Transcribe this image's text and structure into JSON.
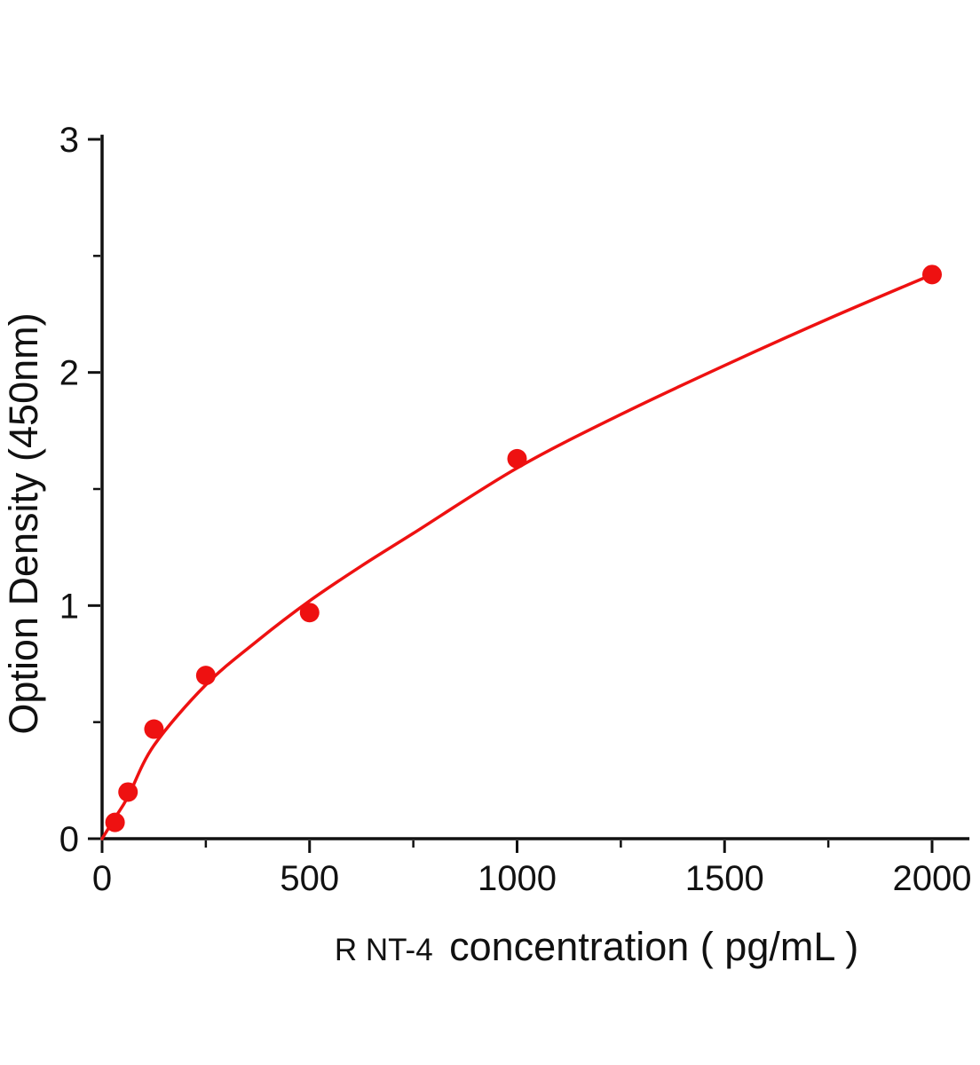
{
  "figure": {
    "background": "#ffffff"
  },
  "chart_data": {
    "type": "scatter",
    "title": "",
    "xlabel": "R NT-4 concentration ( pg/mL )",
    "xlabel_prefix": "R NT-4",
    "xlabel_main": "concentration ( pg/mL )",
    "ylabel": "Option Density (450nm)",
    "xlim": [
      0,
      2090
    ],
    "ylim": [
      0,
      3.02
    ],
    "xticks": [
      0,
      500,
      1000,
      1500,
      2000
    ],
    "yticks": [
      0,
      1,
      2,
      3
    ],
    "x_minor_step": 250,
    "y_minor_step": 0.5,
    "grid": false,
    "legend": "none",
    "colors": {
      "accent": "#ee1111",
      "axis": "#111111"
    },
    "series": [
      {
        "name": "standards",
        "type": "scatter",
        "color": "#ee1111",
        "marker": "circle",
        "points": [
          [
            31.25,
            0.07
          ],
          [
            62.5,
            0.2
          ],
          [
            125,
            0.47
          ],
          [
            250,
            0.7
          ],
          [
            500,
            0.97
          ],
          [
            1000,
            1.63
          ],
          [
            2000,
            2.42
          ]
        ]
      },
      {
        "name": "fitted-curve",
        "type": "line",
        "color": "#ee1111",
        "points": [
          [
            0,
            0
          ],
          [
            31.25,
            0.09
          ],
          [
            62.5,
            0.18
          ],
          [
            125,
            0.4
          ],
          [
            250,
            0.66
          ],
          [
            375,
            0.85
          ],
          [
            500,
            1.02
          ],
          [
            625,
            1.17
          ],
          [
            750,
            1.31
          ],
          [
            1000,
            1.59
          ],
          [
            1250,
            1.82
          ],
          [
            1500,
            2.03
          ],
          [
            1750,
            2.23
          ],
          [
            2000,
            2.42
          ]
        ]
      }
    ]
  }
}
